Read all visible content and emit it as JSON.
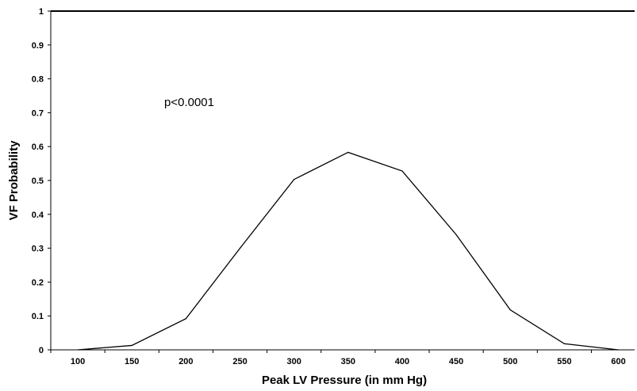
{
  "chart_data": {
    "type": "line",
    "title": "",
    "xlabel": "Peak LV Pressure (in mm Hg)",
    "ylabel": "VF Probability",
    "annotation": "p<0.0001",
    "x": [
      100,
      150,
      200,
      250,
      300,
      350,
      400,
      450,
      500,
      550,
      600
    ],
    "x_tick_labels": [
      "100",
      "150",
      "200",
      "250",
      "300",
      "350",
      "400",
      "450",
      "500",
      "550",
      "600"
    ],
    "y_tick_labels": [
      "0",
      "0.1",
      "0.2",
      "0.3",
      "0.4",
      "0.5",
      "0.6",
      "0.7",
      "0.8",
      "0.9",
      "1"
    ],
    "series": [
      {
        "values": [
          0.0,
          0.013,
          0.092,
          0.3,
          0.503,
          0.583,
          0.528,
          0.34,
          0.118,
          0.018,
          0.0
        ]
      }
    ],
    "ylim": [
      0,
      1
    ],
    "grid": false,
    "line_color": "#000000"
  }
}
